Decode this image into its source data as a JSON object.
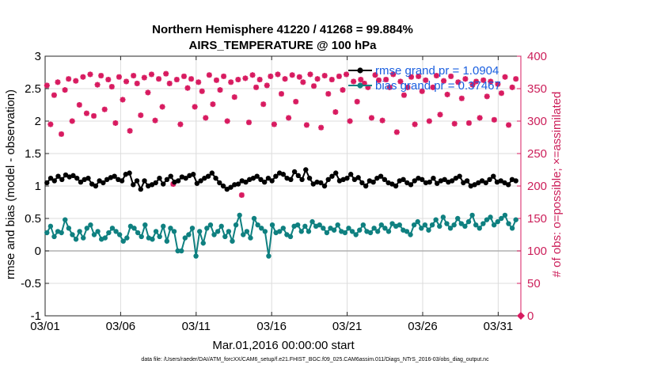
{
  "chart_data": {
    "type": "line",
    "title_line1": "Northern Hemisphere 41220 / 41268 = 99.884%",
    "title_line2": "AIRS_TEMPERATURE @ 100 hPa",
    "xlabel": "Mar.01,2016 00:00:00 start",
    "ylabel": "rmse and bias (model - observation)",
    "y2label": "# of obs: o=possible; ×=assimilated",
    "xlim": [
      0,
      31.5
    ],
    "ylim": [
      -1,
      3
    ],
    "y2lim": [
      0,
      400
    ],
    "x_ticks": [
      0,
      5,
      10,
      15,
      20,
      25,
      30
    ],
    "x_tick_labels": [
      "03/01",
      "03/06",
      "03/11",
      "03/16",
      "03/21",
      "03/26",
      "03/31"
    ],
    "y_ticks": [
      -1,
      -0.5,
      0,
      0.5,
      1,
      1.5,
      2,
      2.5,
      3
    ],
    "y_tick_labels": [
      "-1",
      "-0.5",
      "0",
      "0.5",
      "1",
      "1.5",
      "2",
      "2.5",
      "3"
    ],
    "y2_ticks": [
      0,
      50,
      100,
      150,
      200,
      250,
      300,
      350,
      400
    ],
    "y2_tick_labels": [
      "0",
      "50",
      "100",
      "150",
      "200",
      "250",
      "300",
      "350",
      "400"
    ],
    "grid": true,
    "legend_placement": "top-right",
    "colors": {
      "rmse": "#000000",
      "bias": "#0f8080",
      "obs": "#d81b60",
      "zero_line": "#b0b0b0",
      "legend_text": "#1a5fe0"
    },
    "series": [
      {
        "name": "rmse grand pr = 1.0904",
        "axis": "left",
        "values": [
          1.05,
          1.12,
          1.08,
          1.15,
          1.1,
          1.17,
          1.14,
          1.16,
          1.12,
          1.06,
          1.1,
          1.12,
          1.03,
          1.0,
          1.08,
          1.05,
          1.1,
          1.13,
          1.15,
          1.1,
          1.08,
          1.18,
          1.2,
          1.02,
          1.08,
          0.95,
          1.08,
          1.0,
          1.02,
          1.05,
          1.12,
          1.03,
          1.1,
          1.15,
          1.06,
          1.08,
          1.14,
          1.12,
          1.16,
          1.18,
          1.04,
          1.08,
          1.12,
          1.15,
          1.2,
          1.12,
          1.05,
          1.0,
          0.95,
          0.98,
          1.02,
          1.03,
          1.08,
          1.06,
          1.1,
          1.12,
          1.15,
          1.1,
          1.06,
          1.12,
          1.08,
          1.15,
          1.2,
          1.18,
          1.12,
          1.1,
          1.22,
          1.16,
          1.1,
          1.25,
          1.12,
          1.03,
          1.06,
          1.05,
          1.0,
          1.1,
          1.15,
          1.2,
          1.08,
          1.1,
          1.12,
          1.18,
          1.1,
          1.13,
          1.05,
          1.0,
          1.08,
          1.06,
          1.12,
          1.15,
          1.1,
          1.05,
          1.03,
          1.0,
          1.08,
          1.1,
          1.05,
          1.02,
          1.08,
          1.12,
          1.1,
          1.05,
          1.06,
          1.12,
          1.04,
          1.08,
          1.1,
          1.06,
          1.08,
          1.12,
          1.15,
          1.05,
          1.08,
          1.0,
          1.02,
          1.05,
          1.08,
          1.05,
          1.1,
          1.15,
          1.06,
          1.08,
          1.05,
          1.02,
          1.1,
          1.08
        ]
      },
      {
        "name": "bias grand pr = 0.37467",
        "axis": "left",
        "values": [
          0.28,
          0.38,
          0.22,
          0.3,
          0.28,
          0.48,
          0.35,
          0.25,
          0.18,
          0.3,
          0.2,
          0.35,
          0.4,
          0.25,
          0.3,
          0.18,
          0.2,
          0.28,
          0.35,
          0.3,
          0.25,
          0.15,
          0.2,
          0.38,
          0.35,
          0.28,
          0.22,
          0.4,
          0.2,
          0.18,
          0.3,
          0.22,
          0.38,
          0.15,
          0.35,
          0.3,
          0.0,
          0.0,
          0.2,
          0.25,
          0.35,
          -0.08,
          0.3,
          0.12,
          0.35,
          0.4,
          0.25,
          0.3,
          0.38,
          0.22,
          0.3,
          0.15,
          0.4,
          0.55,
          0.25,
          0.3,
          0.2,
          0.5,
          0.4,
          0.35,
          0.3,
          -0.08,
          0.4,
          0.28,
          0.3,
          0.35,
          0.25,
          0.22,
          0.38,
          0.4,
          0.3,
          0.38,
          0.3,
          0.45,
          0.38,
          0.4,
          0.35,
          0.28,
          0.35,
          0.32,
          0.4,
          0.3,
          0.28,
          0.35,
          0.3,
          0.25,
          0.32,
          0.4,
          0.3,
          0.28,
          0.35,
          0.3,
          0.4,
          0.35,
          0.3,
          0.42,
          0.38,
          0.4,
          0.32,
          0.3,
          0.25,
          0.4,
          0.45,
          0.35,
          0.4,
          0.32,
          0.4,
          0.48,
          0.38,
          0.52,
          0.42,
          0.35,
          0.4,
          0.5,
          0.42,
          0.38,
          0.45,
          0.55,
          0.4,
          0.35,
          0.42,
          0.48,
          0.52,
          0.4,
          0.45,
          0.5,
          0.55,
          0.42,
          0.35,
          0.48
        ]
      },
      {
        "name": "obs assimilated",
        "axis": "right",
        "values": [
          355,
          295,
          340,
          360,
          280,
          348,
          365,
          300,
          362,
          325,
          368,
          312,
          372,
          308,
          356,
          370,
          318,
          364,
          353,
          297,
          368,
          333,
          361,
          285,
          370,
          358,
          309,
          367,
          344,
          372,
          301,
          365,
          322,
          373,
          358,
          203,
          364,
          295,
          369,
          351,
          365,
          322,
          360,
          346,
          305,
          371,
          326,
          363,
          348,
          369,
          300,
          360,
          337,
          364,
          186,
          366,
          298,
          371,
          352,
          364,
          326,
          355,
          369,
          295,
          372,
          342,
          365,
          305,
          371,
          330,
          368,
          360,
          294,
          372,
          354,
          365,
          290,
          370,
          342,
          364,
          314,
          369,
          348,
          372,
          300,
          361,
          330,
          364,
          358,
          352,
          305,
          371,
          363,
          301,
          364,
          352,
          372,
          283,
          361,
          340,
          352,
          368,
          295,
          369,
          346,
          363,
          300,
          352,
          370,
          310,
          362,
          341,
          369,
          296,
          360,
          335,
          365,
          297,
          356,
          361,
          305,
          363,
          338,
          361,
          302,
          357,
          343,
          368,
          294,
          352,
          365
        ]
      }
    ],
    "legend_entries": [
      "rmse grand pr = 1.0904",
      "bias grand pr = 0.37467"
    ],
    "footer": "data file: /Users/raeder/DAI/ATM_forcXX/CAM6_setup/f.e21.FHIST_BGC.f09_025.CAM6assim.011/Diags_NTrS_2016-03/obs_diag_output.nc",
    "right_axis_marker_value": 0
  }
}
